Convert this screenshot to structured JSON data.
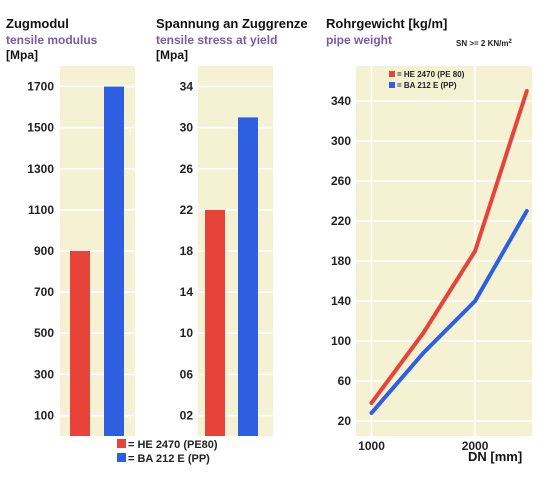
{
  "colors": {
    "panel": "#f4f2d2",
    "gridline": "#ffffff",
    "red": "#e8433a",
    "blue": "#2d5fe0"
  },
  "legend_bottom": [
    {
      "color": "red",
      "label": "= HE 2470 (PE80)"
    },
    {
      "color": "blue",
      "label": "= BA 212 E (PP)"
    }
  ],
  "chart_data": [
    {
      "type": "bar",
      "title": "Zugmodul",
      "subtitle": "tensile modulus",
      "ylabel": "[Mpa]",
      "ylim": [
        0,
        1800
      ],
      "ytick_labels": [
        "1700",
        "1500",
        "1300",
        "1100",
        "900",
        "700",
        "500",
        "300",
        "100"
      ],
      "series": [
        {
          "name": "HE 2470 (PE80)",
          "color": "red",
          "values": [
            900
          ]
        },
        {
          "name": "BA 212 E (PP)",
          "color": "blue",
          "values": [
            1700
          ]
        }
      ]
    },
    {
      "type": "bar",
      "title": "Spannung an Zuggrenze",
      "subtitle": "tensile stress at yield",
      "ylabel": "[Mpa]",
      "ylim": [
        0,
        36
      ],
      "ytick_labels": [
        "34",
        "30",
        "26",
        "22",
        "18",
        "14",
        "10",
        "06",
        "02"
      ],
      "series": [
        {
          "name": "HE 2470 (PE80)",
          "color": "red",
          "values": [
            22
          ]
        },
        {
          "name": "BA 212 E (PP)",
          "color": "blue",
          "values": [
            31
          ]
        }
      ]
    },
    {
      "type": "line",
      "title": "Rohrgewicht [kg/m]",
      "subtitle": "pipe weight",
      "note": "SN >= 2 KN/m",
      "note_sup": "2",
      "xlabel": "DN [mm]",
      "x_tick_labels": [
        "1000",
        "2000"
      ],
      "xlim": [
        850,
        2550
      ],
      "ylim": [
        5,
        375
      ],
      "ytick_labels": [
        "340",
        "300",
        "260",
        "220",
        "180",
        "140",
        "100",
        "60",
        "20"
      ],
      "legend": [
        {
          "color": "red",
          "label": "= HE 2470 (PE 80)"
        },
        {
          "color": "blue",
          "label": "= BA 212 E (PP)"
        }
      ],
      "series": [
        {
          "name": "HE 2470 (PE 80)",
          "color": "red",
          "x": [
            1000,
            1500,
            2000,
            2500
          ],
          "y": [
            38,
            108,
            190,
            350
          ]
        },
        {
          "name": "BA 212 E (PP)",
          "color": "blue",
          "x": [
            1000,
            1500,
            2000,
            2500
          ],
          "y": [
            28,
            88,
            140,
            230
          ]
        }
      ]
    }
  ]
}
